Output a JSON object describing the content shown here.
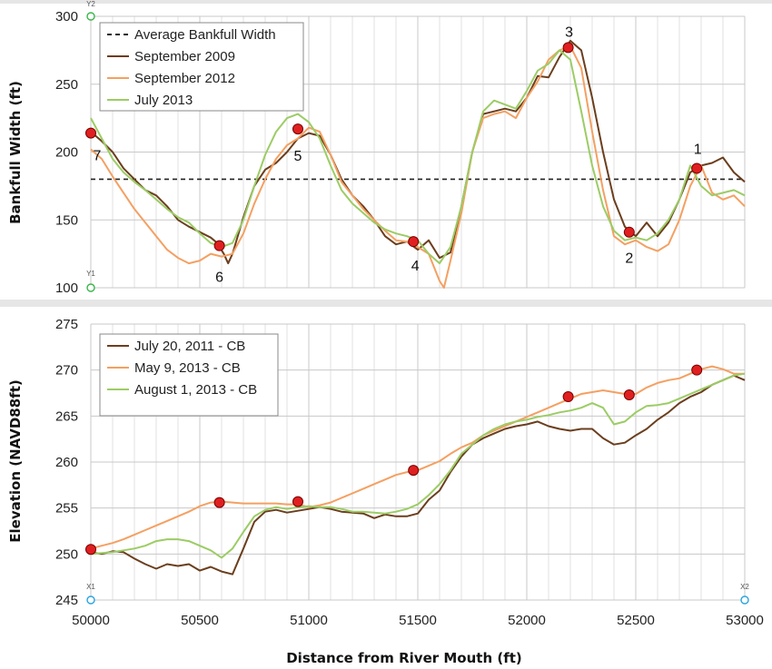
{
  "chart_data": [
    {
      "type": "line",
      "ylabel": "Bankfull Width (ft)",
      "xlim": [
        50000,
        53000
      ],
      "ylim": [
        100,
        300
      ],
      "yticks": [
        100,
        150,
        200,
        250,
        300
      ],
      "reference_line": {
        "name": "Average Bankfull Width",
        "y": 180
      },
      "legend": "top-left",
      "grid": true,
      "series": [
        {
          "name": "September 2009",
          "color": "#6b3e1d",
          "x": [
            50000,
            50050,
            50100,
            50150,
            50200,
            50250,
            50300,
            50350,
            50400,
            50450,
            50500,
            50550,
            50580,
            50610,
            50630,
            50650,
            50700,
            50750,
            50800,
            50850,
            50900,
            50950,
            51000,
            51050,
            51100,
            51150,
            51200,
            51250,
            51300,
            51350,
            51400,
            51450,
            51500,
            51550,
            51600,
            51650,
            51700,
            51750,
            51800,
            51850,
            51900,
            51950,
            52000,
            52050,
            52100,
            52150,
            52200,
            52250,
            52300,
            52350,
            52400,
            52450,
            52500,
            52550,
            52600,
            52650,
            52700,
            52750,
            52800,
            52850,
            52900,
            52950,
            53000
          ],
          "values": [
            215,
            208,
            200,
            188,
            180,
            172,
            168,
            160,
            150,
            145,
            141,
            137,
            133,
            125,
            118,
            125,
            152,
            175,
            187,
            192,
            200,
            210,
            214,
            212,
            198,
            180,
            168,
            160,
            150,
            138,
            132,
            134,
            128,
            135,
            122,
            126,
            160,
            200,
            228,
            230,
            232,
            230,
            240,
            256,
            255,
            270,
            282,
            275,
            240,
            200,
            165,
            145,
            138,
            148,
            138,
            148,
            165,
            185,
            190,
            192,
            196,
            185,
            178
          ]
        },
        {
          "name": "September 2012",
          "color": "#f4a062",
          "x": [
            50000,
            50050,
            50100,
            50150,
            50200,
            50250,
            50300,
            50350,
            50400,
            50450,
            50500,
            50550,
            50600,
            50650,
            50700,
            50750,
            50800,
            50850,
            50900,
            50950,
            51000,
            51050,
            51100,
            51150,
            51200,
            51250,
            51300,
            51350,
            51400,
            51450,
            51500,
            51550,
            51600,
            51620,
            51650,
            51700,
            51750,
            51800,
            51850,
            51900,
            51950,
            52000,
            52050,
            52100,
            52150,
            52200,
            52250,
            52300,
            52350,
            52400,
            52450,
            52500,
            52550,
            52600,
            52650,
            52700,
            52750,
            52800,
            52850,
            52900,
            52950,
            53000
          ],
          "values": [
            202,
            195,
            182,
            170,
            158,
            148,
            138,
            128,
            122,
            118,
            120,
            125,
            123,
            125,
            140,
            162,
            180,
            195,
            205,
            210,
            218,
            215,
            198,
            178,
            168,
            158,
            150,
            142,
            135,
            134,
            130,
            125,
            105,
            100,
            120,
            155,
            200,
            225,
            228,
            230,
            225,
            240,
            252,
            268,
            275,
            278,
            262,
            215,
            172,
            138,
            132,
            135,
            130,
            127,
            132,
            150,
            175,
            190,
            170,
            165,
            168,
            160
          ]
        },
        {
          "name": "July 2013",
          "color": "#9ccc65",
          "x": [
            50000,
            50050,
            50100,
            50150,
            50200,
            50250,
            50300,
            50350,
            50400,
            50450,
            50500,
            50550,
            50600,
            50650,
            50700,
            50750,
            50800,
            50850,
            50900,
            50950,
            51000,
            51050,
            51100,
            51150,
            51200,
            51250,
            51300,
            51350,
            51400,
            51450,
            51500,
            51550,
            51600,
            51650,
            51700,
            51750,
            51800,
            51850,
            51900,
            51950,
            52000,
            52050,
            52100,
            52150,
            52200,
            52250,
            52300,
            52350,
            52400,
            52450,
            52500,
            52550,
            52600,
            52650,
            52700,
            52750,
            52800,
            52850,
            52900,
            52950,
            53000
          ],
          "values": [
            225,
            210,
            195,
            185,
            178,
            172,
            165,
            158,
            152,
            148,
            140,
            133,
            130,
            133,
            150,
            175,
            198,
            215,
            225,
            228,
            222,
            210,
            190,
            172,
            162,
            155,
            148,
            143,
            140,
            138,
            135,
            125,
            118,
            130,
            160,
            200,
            230,
            238,
            235,
            232,
            245,
            260,
            265,
            275,
            268,
            230,
            190,
            160,
            142,
            135,
            137,
            135,
            140,
            150,
            165,
            190,
            175,
            168,
            170,
            172,
            168
          ]
        }
      ],
      "points": [
        {
          "label": "7",
          "x": 50000,
          "y": 214
        },
        {
          "label": "6",
          "x": 50590,
          "y": 131
        },
        {
          "label": "5",
          "x": 50950,
          "y": 217
        },
        {
          "label": "4",
          "x": 51480,
          "y": 134
        },
        {
          "label": "3",
          "x": 52190,
          "y": 277
        },
        {
          "label": "2",
          "x": 52470,
          "y": 141
        },
        {
          "label": "1",
          "x": 52780,
          "y": 188
        }
      ],
      "handles": [
        "Y2",
        "Y1"
      ]
    },
    {
      "type": "line",
      "xlabel": "Distance from River Mouth (ft)",
      "ylabel": "Elevation (NAVD88ft)",
      "xlim": [
        50000,
        53000
      ],
      "ylim": [
        245,
        275
      ],
      "xticks": [
        50000,
        50500,
        51000,
        51500,
        52000,
        52500,
        53000
      ],
      "yticks": [
        245,
        250,
        255,
        260,
        265,
        270,
        275
      ],
      "legend": "top-left",
      "grid": true,
      "series": [
        {
          "name": "July 20, 2011 - CB",
          "color": "#6b3e1d",
          "x": [
            50000,
            50050,
            50100,
            50150,
            50200,
            50250,
            50300,
            50350,
            50400,
            50450,
            50500,
            50550,
            50600,
            50650,
            50700,
            50750,
            50800,
            50850,
            50900,
            50950,
            51000,
            51050,
            51100,
            51150,
            51200,
            51250,
            51300,
            51350,
            51400,
            51450,
            51500,
            51550,
            51600,
            51650,
            51700,
            51750,
            51800,
            51850,
            51900,
            51950,
            52000,
            52050,
            52100,
            52150,
            52200,
            52250,
            52300,
            52350,
            52400,
            52450,
            52500,
            52550,
            52600,
            52650,
            52700,
            52750,
            52800,
            52850,
            52900,
            52950,
            53000
          ],
          "values": [
            250.2,
            250.0,
            250.3,
            250.2,
            249.5,
            248.9,
            248.4,
            248.9,
            248.7,
            248.9,
            248.2,
            248.6,
            248.1,
            247.8,
            250.6,
            253.5,
            254.6,
            254.8,
            254.5,
            254.7,
            254.9,
            255.1,
            254.9,
            254.6,
            254.5,
            254.4,
            253.9,
            254.3,
            254.1,
            254.1,
            254.4,
            255.9,
            256.9,
            258.9,
            260.6,
            261.9,
            262.6,
            263.1,
            263.6,
            263.9,
            264.1,
            264.4,
            263.9,
            263.6,
            263.4,
            263.6,
            263.6,
            262.6,
            261.9,
            262.1,
            262.9,
            263.6,
            264.6,
            265.4,
            266.4,
            267.1,
            267.6,
            268.4,
            268.9,
            269.4,
            268.9
          ]
        },
        {
          "name": "May 9, 2013 - CB",
          "color": "#f4a062",
          "x": [
            50000,
            50050,
            50100,
            50150,
            50200,
            50250,
            50300,
            50350,
            50400,
            50450,
            50500,
            50550,
            50600,
            50650,
            50700,
            50750,
            50800,
            50850,
            50900,
            50950,
            51000,
            51050,
            51100,
            51150,
            51200,
            51250,
            51300,
            51350,
            51400,
            51450,
            51500,
            51550,
            51600,
            51650,
            51700,
            51750,
            51800,
            51850,
            51900,
            51950,
            52000,
            52050,
            52100,
            52150,
            52200,
            52250,
            52300,
            52350,
            52400,
            52450,
            52500,
            52550,
            52600,
            52650,
            52700,
            52750,
            52800,
            52850,
            52900,
            52950,
            53000
          ],
          "values": [
            250.6,
            250.9,
            251.2,
            251.6,
            252.1,
            252.6,
            253.1,
            253.6,
            254.1,
            254.6,
            255.2,
            255.6,
            255.7,
            255.6,
            255.5,
            255.5,
            255.5,
            255.5,
            255.4,
            255.4,
            255.1,
            255.3,
            255.6,
            256.1,
            256.6,
            257.1,
            257.6,
            258.1,
            258.6,
            258.9,
            259.1,
            259.6,
            260.1,
            260.9,
            261.6,
            262.1,
            262.9,
            263.4,
            263.9,
            264.4,
            264.9,
            265.4,
            265.9,
            266.4,
            266.9,
            267.4,
            267.6,
            267.8,
            267.6,
            267.4,
            267.4,
            268.1,
            268.6,
            268.9,
            269.1,
            269.6,
            270.1,
            270.4,
            270.1,
            269.6,
            269.6
          ]
        },
        {
          "name": "August 1, 2013 - CB",
          "color": "#9ccc65",
          "x": [
            50000,
            50050,
            50100,
            50150,
            50200,
            50250,
            50300,
            50350,
            50400,
            50450,
            50500,
            50550,
            50600,
            50650,
            50700,
            50750,
            50800,
            50850,
            50900,
            50950,
            51000,
            51050,
            51100,
            51150,
            51200,
            51250,
            51300,
            51350,
            51400,
            51450,
            51500,
            51550,
            51600,
            51650,
            51700,
            51750,
            51800,
            51850,
            51900,
            51950,
            52000,
            52050,
            52100,
            52150,
            52200,
            52250,
            52300,
            52350,
            52400,
            52450,
            52500,
            52550,
            52600,
            52650,
            52700,
            52750,
            52800,
            52850,
            52900,
            52950,
            53000
          ],
          "values": [
            250.0,
            250.1,
            250.2,
            250.4,
            250.6,
            250.9,
            251.4,
            251.6,
            251.6,
            251.4,
            250.9,
            250.4,
            249.6,
            250.6,
            252.4,
            254.1,
            254.8,
            255.1,
            254.9,
            255.1,
            255.2,
            255.1,
            255.1,
            254.9,
            254.6,
            254.6,
            254.5,
            254.4,
            254.6,
            254.9,
            255.4,
            256.4,
            257.6,
            259.1,
            260.9,
            261.9,
            262.9,
            263.6,
            264.1,
            264.4,
            264.6,
            264.9,
            265.1,
            265.4,
            265.6,
            265.9,
            266.4,
            265.9,
            264.1,
            264.4,
            265.4,
            266.1,
            266.2,
            266.4,
            266.9,
            267.4,
            267.9,
            268.4,
            268.9,
            269.4,
            269.6
          ]
        }
      ],
      "points": [
        {
          "x": 50000,
          "y": 250.5
        },
        {
          "x": 50590,
          "y": 255.6
        },
        {
          "x": 50950,
          "y": 255.7
        },
        {
          "x": 51480,
          "y": 259.1
        },
        {
          "x": 52190,
          "y": 267.1
        },
        {
          "x": 52470,
          "y": 267.3
        },
        {
          "x": 52780,
          "y": 270.0
        }
      ],
      "handles": [
        "X1",
        "X2"
      ]
    }
  ],
  "colors": {
    "point_fill": "#e02020",
    "grid": "#c8c8c8",
    "reference_line": "#222222",
    "panel_divider": "#e6e6e6"
  }
}
